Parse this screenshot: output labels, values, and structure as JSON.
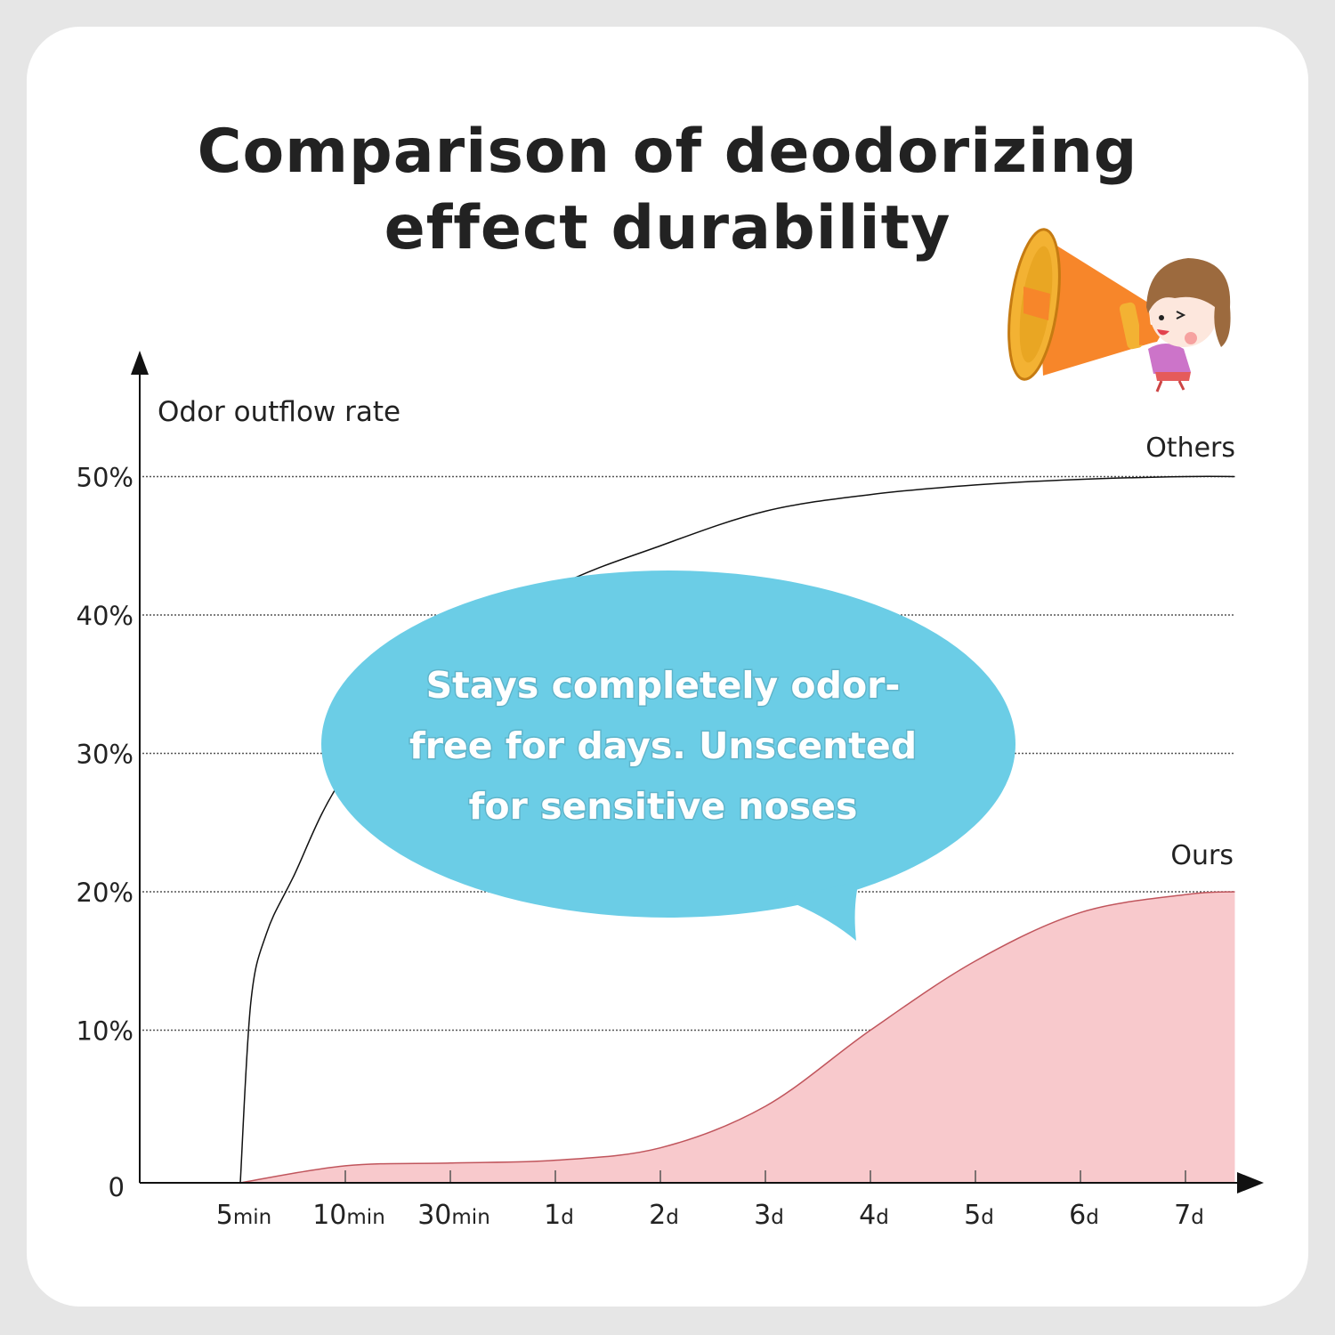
{
  "title": {
    "line1": "Comparison of deodorizing",
    "line2": "effect durability"
  },
  "callout": {
    "line1": "Stays completely odor-",
    "line2": "free for days. Unscented",
    "line3": "for sensitive noses"
  },
  "colors": {
    "background": "#e6e6e6",
    "bubble": "#6bcde6",
    "ours_fill": "#f8c9cc",
    "ours_line": "#c0555c",
    "others_line": "#111111"
  },
  "chart_data": {
    "type": "area",
    "title": "Comparison of deodorizing effect durability",
    "ylabel": "Odor outflow rate",
    "xlabel": "",
    "ylim": [
      0,
      50
    ],
    "grid": "horizontal dotted",
    "y_ticks": [
      {
        "value": 50,
        "label": "50%"
      },
      {
        "value": 40,
        "label": "40%"
      },
      {
        "value": 30,
        "label": "30%"
      },
      {
        "value": 20,
        "label": "20%"
      },
      {
        "value": 10,
        "label": "10%"
      },
      {
        "value": 0,
        "label": "0"
      }
    ],
    "x_ticks": [
      {
        "num": "5",
        "unit": "min"
      },
      {
        "num": "10",
        "unit": "min"
      },
      {
        "num": "30",
        "unit": "min"
      },
      {
        "num": "1",
        "unit": "d"
      },
      {
        "num": "2",
        "unit": "d"
      },
      {
        "num": "3",
        "unit": "d"
      },
      {
        "num": "4",
        "unit": "d"
      },
      {
        "num": "5",
        "unit": "d"
      },
      {
        "num": "6",
        "unit": "d"
      },
      {
        "num": "7",
        "unit": "d"
      }
    ],
    "series": [
      {
        "name": "Others",
        "label_position": "end-above",
        "points": [
          [
            0,
            0
          ],
          [
            0.1,
            12
          ],
          [
            0.25,
            17
          ],
          [
            0.5,
            21
          ],
          [
            1,
            28.5
          ],
          [
            2,
            37
          ],
          [
            3,
            42
          ],
          [
            4,
            45
          ],
          [
            5,
            47.5
          ],
          [
            6,
            48.7
          ],
          [
            7,
            49.4
          ],
          [
            8,
            49.8
          ],
          [
            9,
            50
          ],
          [
            9.47,
            50
          ]
        ]
      },
      {
        "name": "Ours",
        "label_position": "end-above",
        "filled": true,
        "points": [
          [
            0,
            0
          ],
          [
            1,
            0.2
          ],
          [
            2,
            0.4
          ],
          [
            3,
            0.6
          ],
          [
            4,
            1.5
          ],
          [
            5,
            4.5
          ],
          [
            6,
            10
          ],
          [
            7,
            15
          ],
          [
            8,
            18.5
          ],
          [
            9,
            19.8
          ],
          [
            9.47,
            20
          ]
        ]
      }
    ]
  }
}
